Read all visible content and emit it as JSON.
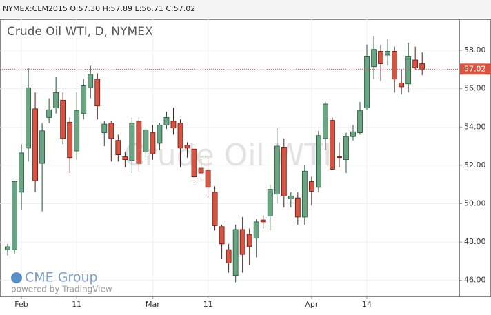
{
  "chart_data": {
    "type": "candlestick",
    "header": "NYMEX:CLM2015 O:57.30 H:57.89 L:56.71 C:57.02",
    "title": "Crude Oil WTI, D, NYMEX",
    "watermark": "Crude Oil WTI",
    "logo": "CME Group",
    "credit": "powered by TradingView",
    "categories": [
      null,
      null,
      "Feb",
      null,
      null,
      null,
      null,
      null,
      null,
      null,
      "11",
      null,
      null,
      null,
      null,
      null,
      null,
      null,
      null,
      null,
      null,
      "Mar",
      null,
      null,
      null,
      null,
      null,
      null,
      null,
      "11",
      null,
      null,
      null,
      null,
      null,
      null,
      null,
      null,
      null,
      null,
      null,
      null,
      null,
      null,
      "Apr",
      null,
      null,
      null,
      null,
      null,
      null,
      null,
      "14",
      null,
      null,
      null,
      null,
      null,
      null,
      null,
      null
    ],
    "series": {
      "up_color": "#6ba583",
      "down_color": "#d75442",
      "open": [
        47.6,
        47.6,
        50.6,
        52.9,
        54.95,
        52.1,
        54.5,
        55.0,
        55.4,
        54.25,
        52.75,
        54.7,
        56.05,
        56.5,
        53.7,
        54.2,
        53.3,
        52.45,
        52.25,
        54.3,
        52.7,
        53.7,
        53.15,
        54.1,
        54.3,
        54.2,
        53.05,
        52.85,
        51.85,
        51.75,
        50.6,
        48.8,
        47.6,
        46.25,
        48.65,
        48.4,
        48.2,
        49.15,
        49.35,
        50.5,
        52.95,
        50.25,
        50.3,
        49.3,
        51.15,
        50.85,
        53.4,
        54.35,
        52.45,
        52.3,
        53.5,
        53.7,
        55.0,
        57.15,
        57.95,
        57.75,
        57.95,
        56.3,
        56.25,
        57.5,
        57.3
      ],
      "high": [
        47.9,
        51.2,
        53.1,
        57.1,
        55.8,
        54.2,
        55.5,
        56.6,
        55.8,
        54.5,
        55.8,
        56.5,
        57.2,
        56.8,
        54.3,
        54.3,
        53.6,
        52.7,
        54.5,
        54.5,
        54.0,
        54.1,
        54.2,
        54.8,
        55.0,
        54.4,
        53.2,
        53.1,
        52.3,
        52.4,
        50.9,
        48.9,
        47.9,
        48.9,
        49.3,
        48.7,
        49.2,
        49.4,
        51.0,
        53.95,
        53.4,
        50.6,
        50.6,
        52.0,
        51.4,
        53.8,
        55.3,
        54.5,
        53.2,
        53.7,
        54.1,
        55.3,
        58.3,
        58.75,
        58.3,
        58.6,
        58.2,
        57.0,
        58.4,
        58.2,
        57.89
      ],
      "low": [
        47.3,
        47.4,
        49.7,
        52.2,
        50.6,
        49.6,
        54.2,
        54.7,
        53.1,
        51.6,
        52.3,
        54.4,
        55.5,
        54.4,
        53.0,
        52.2,
        52.2,
        51.9,
        51.6,
        51.7,
        52.4,
        52.3,
        52.8,
        53.9,
        53.6,
        51.9,
        52.4,
        51.1,
        51.2,
        50.3,
        48.6,
        47.1,
        46.4,
        45.9,
        46.4,
        46.8,
        47.2,
        48.7,
        48.6,
        50.0,
        49.8,
        49.8,
        48.9,
        48.9,
        49.9,
        50.6,
        52.8,
        51.8,
        51.9,
        51.6,
        53.3,
        53.6,
        54.9,
        56.5,
        56.4,
        57.2,
        55.8,
        55.7,
        55.8,
        57.0,
        56.71
      ],
      "close": [
        47.75,
        51.15,
        52.65,
        56.05,
        51.2,
        53.8,
        54.9,
        55.8,
        53.4,
        52.4,
        54.85,
        56.15,
        56.75,
        55.1,
        54.15,
        53.4,
        52.55,
        52.3,
        54.2,
        52.1,
        53.85,
        52.6,
        54.1,
        54.5,
        53.95,
        52.9,
        52.9,
        51.4,
        51.6,
        50.85,
        48.85,
        47.9,
        46.9,
        48.65,
        47.35,
        47.75,
        49.05,
        49.05,
        50.75,
        53.0,
        50.4,
        50.4,
        49.3,
        51.7,
        50.65,
        53.55,
        55.2,
        51.8,
        52.4,
        53.5,
        53.75,
        54.85,
        57.7,
        58.05,
        57.3,
        57.95,
        56.5,
        56.1,
        57.7,
        57.1,
        57.02
      ]
    },
    "last_price": {
      "value": 57.02,
      "label": "57.02",
      "color": "#d75442"
    },
    "ylim": [
      45.16,
      59.55
    ],
    "yticks": [
      {
        "value": 46,
        "label": "46.00"
      },
      {
        "value": 48,
        "label": "48.00"
      },
      {
        "value": 50,
        "label": "50.00"
      },
      {
        "value": 52,
        "label": "52.00"
      },
      {
        "value": 54,
        "label": "54.00"
      },
      {
        "value": 56,
        "label": "56.00"
      },
      {
        "value": 58,
        "label": "58.00"
      }
    ],
    "grid": true
  }
}
